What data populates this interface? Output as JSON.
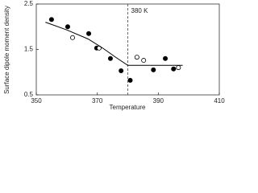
{
  "chart_data": {
    "type": "scatter",
    "ylabel": "Surface dipole moment density",
    "xlabel": "Temperature",
    "xlim": [
      350,
      410
    ],
    "xticks": [
      350,
      370,
      390,
      410
    ],
    "ylim": [
      0.5,
      2.5
    ],
    "yticks": [
      0.5,
      1.5,
      2.5
    ],
    "series": [
      {
        "marker": "filled",
        "color": "#000000",
        "x": [
          355,
          360.3,
          367.2,
          369.8,
          374.3,
          377.8,
          380.8,
          388.4,
          392.3,
          395
        ],
        "values": [
          2.16,
          2.0,
          1.85,
          1.53,
          1.3,
          1.03,
          0.82,
          1.05,
          1.3,
          1.07
        ]
      },
      {
        "marker": "open",
        "color": "#000000",
        "x": [
          361.9,
          370.6,
          383,
          385.2,
          396.6
        ],
        "values": [
          1.76,
          1.53,
          1.33,
          1.26,
          1.1
        ]
      },
      {
        "marker": "line",
        "color": "#000000",
        "x": [
          353,
          360,
          367,
          372,
          376,
          380,
          388,
          398
        ],
        "values": [
          2.1,
          1.93,
          1.73,
          1.52,
          1.33,
          1.15,
          1.15,
          1.15
        ]
      }
    ],
    "annotations": [
      {
        "text": "380 K",
        "x": 380
      }
    ]
  }
}
